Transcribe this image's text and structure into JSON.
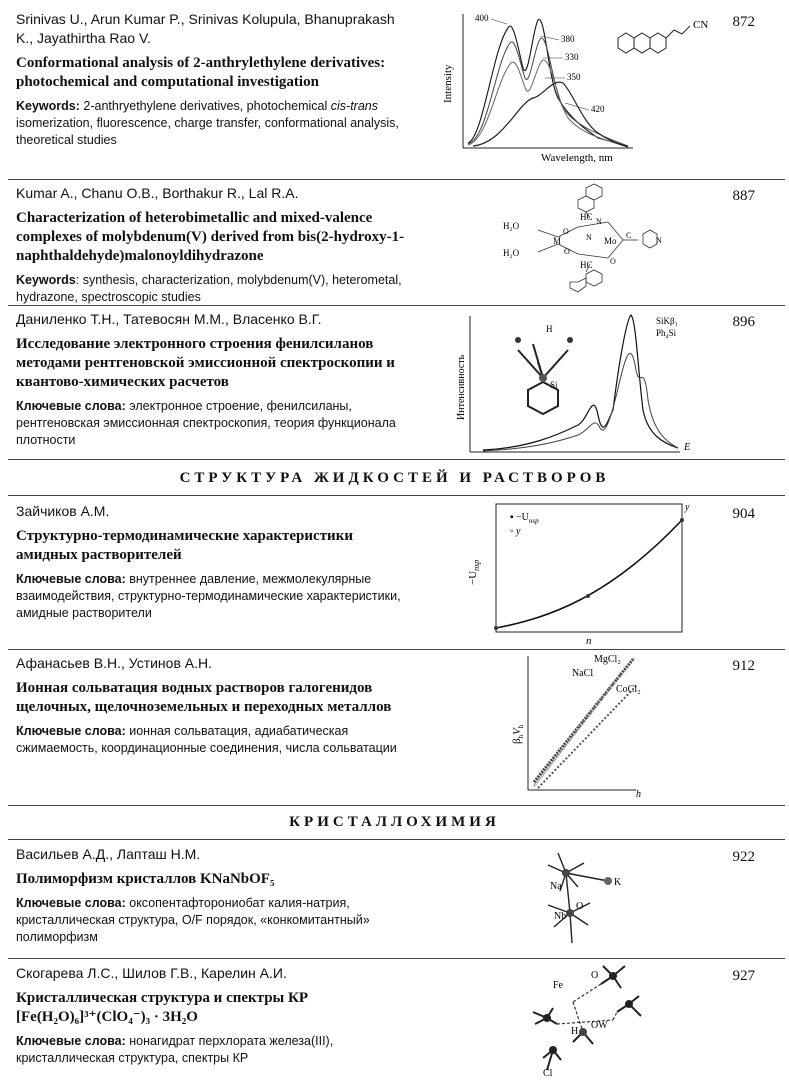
{
  "entries": [
    {
      "authors": "Srinivas U., Arun Kumar P., Srinivas Kolupula, Bhanuprakash K., Jayathirtha Rao V.",
      "title": "Conformational analysis of 2-anthrylethylene derivatives: photochemical and computational investigation",
      "kw_label": "Keywords:",
      "kw_text_1": "2-anthryethylene derivatives, photochemical ",
      "kw_italic": "cis-trans",
      "kw_text_2": " isomerization, fluorescence, charge transfer, conformational analysis, theoretical studies",
      "page": "872",
      "figure": {
        "ylabel": "Intensity",
        "xlabel": "Wavelength, nm",
        "curve_labels": [
          "400",
          "380",
          "330",
          "350",
          "420"
        ],
        "cn_label": "CN"
      }
    },
    {
      "authors": "Kumar A., Chanu O.B., Borthakur R., Lal R.A.",
      "title": "Characterization of heterobimetallic and mixed-valence complexes of molybdenum(V) derived from bis(2-hydroxy-1-naphthaldehyde)malonoyldihydrazone",
      "kw_label": "Keywords",
      "kw_text": ": synthesis, characterization, molybdenum(V), heterometal, hydrazone, spectroscopic studies",
      "page": "887",
      "figure": {
        "labels": [
          "H₂O",
          "H₂O",
          "M",
          "HC",
          "N",
          "N",
          "O",
          "Mo",
          "O",
          "C",
          "N",
          "HC",
          "O"
        ]
      }
    },
    {
      "authors": "Даниленко Т.Н., Татевосян М.М., Власенко В.Г.",
      "title": "Исследование электронного строения фенилсиланов методами рентгеновской эмиссионной спектроскопии и квантово-химических расчетов",
      "kw_label": "Ключевые слова:",
      "kw_text": " электронное строение, фенилсиланы, рентгеновская эмиссионная спектроскопия, теория функционала плотности",
      "page": "896",
      "figure": {
        "ylabel": "Интенсивность",
        "xlabel": "E",
        "legend_1": "SiKβ₁",
        "legend_2": "Ph₄Si",
        "atom_h": "H",
        "atom_si": "Si"
      }
    },
    {
      "authors": "Зайчиков А.М.",
      "title": "Структурно-термодинамические характеристики амидных растворителей",
      "kw_label": "Ключевые слова:",
      "kw_text": " внутреннее давление, межмолекулярные взаимодействия, структурно-термодинамические характеристики, амидные растворители",
      "page": "904",
      "figure": {
        "ylabel": "−U",
        "ylabel_sub": "nsp",
        "xlabel": "n",
        "legend_1": "−U",
        "legend_1_sub": "nsp",
        "legend_2": "y",
        "corner_label": "y"
      }
    },
    {
      "authors": "Афанасьев В.Н., Устинов А.Н.",
      "title": "Ионная сольватация водных растворов галогенидов щелочных, щелочноземельных и переходных металлов",
      "kw_label": "Ключевые слова:",
      "kw_text": " ионная сольватация, адиабатическая сжимаемость, координационные соединения, числа сольватации",
      "page": "912",
      "figure": {
        "ylabel": "β",
        "ylabel_sub1": "h",
        "ylabel_mid": "V",
        "ylabel_sub2": "h",
        "xlabel": "h",
        "series": [
          "MgCl₂",
          "NaCl",
          "CoCl₂"
        ]
      }
    },
    {
      "authors": "Васильев А.Д., Лапташ Н.М.",
      "title": "Полиморфизм кристаллов KNaNbOF₅",
      "kw_label": "Ключевые слова:",
      "kw_text": " оксопентафторониобат калия-натрия, кристаллическая структура, O/F порядок, «конкомитантный» полиморфизм",
      "page": "922",
      "figure": {
        "labels": [
          "Na",
          "K",
          "Nb",
          "O"
        ]
      }
    },
    {
      "authors": "Скогарева Л.С., Шилов Г.В., Карелин А.И.",
      "title": "Кристаллическая структура и спектры КР [Fe(H₂O)₆]³⁺(ClO₄⁻)₃ · 3H₂O",
      "kw_label": "Ключевые слова:",
      "kw_text": " нонагидрат перхлората железа(III), кристаллическая структура, спектры КР",
      "page": "927",
      "figure": {
        "labels": [
          "Fe",
          "O",
          "H",
          "OW",
          "Cl"
        ]
      }
    }
  ],
  "sections": {
    "liquids": "СТРУКТУРА ЖИДКОСТЕЙ И РАСТВОРОВ",
    "crystal": "КРИСТАЛЛОХИМИЯ"
  }
}
